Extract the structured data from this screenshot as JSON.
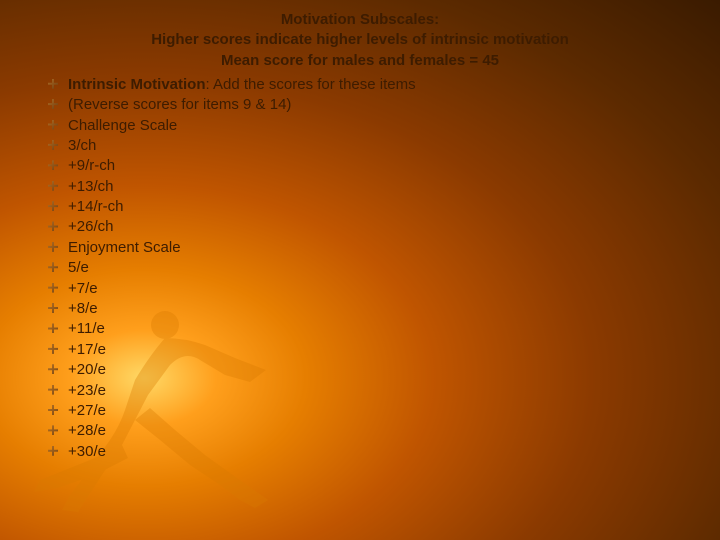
{
  "colors": {
    "text": "#3d1c00",
    "bg_inner": "#ffd966",
    "bg_mid": "#c05500",
    "bg_outer": "#2b1400",
    "bullet": "#8b5a28",
    "runner_fill": "#d97a00"
  },
  "title": {
    "line1": "Motivation Subscales:",
    "line2": "Higher scores indicate higher levels of intrinsic motivation",
    "line3": "Mean score for males and females = 45",
    "fontsize": 15
  },
  "heading": {
    "label": "Intrinsic Motivation",
    "rest": ": Add the scores for these items",
    "fontsize": 15
  },
  "list": {
    "fontsize": 15,
    "items": [
      "(Reverse scores for items 9 & 14)",
      "Challenge Scale",
      "3/ch",
      "+9/r-ch",
      "+13/ch",
      "+14/r-ch",
      "+26/ch",
      "Enjoyment Scale",
      "5/e",
      "+7/e",
      "+8/e",
      "+11/e",
      "+17/e",
      "+20/e",
      "+23/e",
      "+27/e",
      "+28/e",
      "+30/e"
    ]
  }
}
